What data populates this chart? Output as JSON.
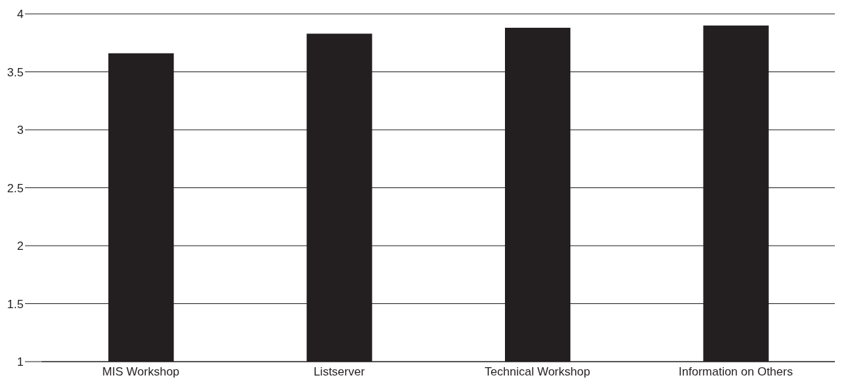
{
  "chart_data": {
    "type": "bar",
    "categories": [
      "MIS Workshop",
      "Listserver",
      "Technical Workshop",
      "Information on Others"
    ],
    "values": [
      3.66,
      3.83,
      3.88,
      3.9
    ],
    "color": "#231f20",
    "ylim": [
      1,
      4
    ],
    "yticks": [
      1,
      1.5,
      2,
      2.5,
      3,
      3.5,
      4
    ],
    "grid": "y",
    "legend": false
  }
}
